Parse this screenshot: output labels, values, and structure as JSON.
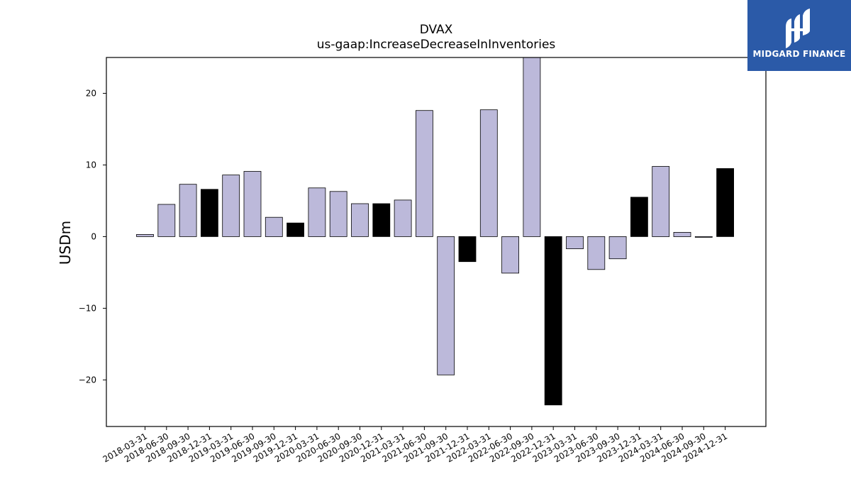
{
  "chart_data": {
    "type": "bar",
    "title": "DVAX",
    "subtitle": "us-gaap:IncreaseDecreaseInInventories",
    "ylabel": "USDm",
    "xlabel": "",
    "ylim": [
      -26.5,
      25
    ],
    "yticks": [
      -20,
      -10,
      0,
      10,
      20
    ],
    "grid": false,
    "colors": {
      "quarter": "#bcb9da",
      "year_end": "#000000",
      "edge": "#000000"
    },
    "categories": [
      "2018-03-31",
      "2018-06-30",
      "2018-09-30",
      "2018-12-31",
      "2019-03-31",
      "2019-06-30",
      "2019-09-30",
      "2019-12-31",
      "2020-03-31",
      "2020-06-30",
      "2020-09-30",
      "2020-12-31",
      "2021-03-31",
      "2021-06-30",
      "2021-09-30",
      "2021-12-31",
      "2022-03-31",
      "2022-06-30",
      "2022-09-30",
      "2022-12-31",
      "2023-03-31",
      "2023-06-30",
      "2023-09-30",
      "2023-12-31",
      "2024-03-31",
      "2024-06-30",
      "2024-09-30",
      "2024-12-31"
    ],
    "values": [
      0.3,
      4.5,
      7.3,
      6.6,
      8.6,
      9.1,
      2.7,
      1.9,
      6.8,
      6.3,
      4.6,
      4.6,
      5.1,
      17.6,
      -19.3,
      -3.5,
      17.7,
      -5.1,
      25.0,
      -23.5,
      -1.7,
      -4.6,
      -3.1,
      5.5,
      9.8,
      0.6,
      -0.1,
      9.5
    ],
    "year_end": [
      false,
      false,
      false,
      true,
      false,
      false,
      false,
      true,
      false,
      false,
      false,
      true,
      false,
      false,
      false,
      true,
      false,
      false,
      false,
      true,
      false,
      false,
      false,
      true,
      false,
      false,
      false,
      true
    ]
  },
  "logo": {
    "text": "MIDGARD FINANCE"
  }
}
